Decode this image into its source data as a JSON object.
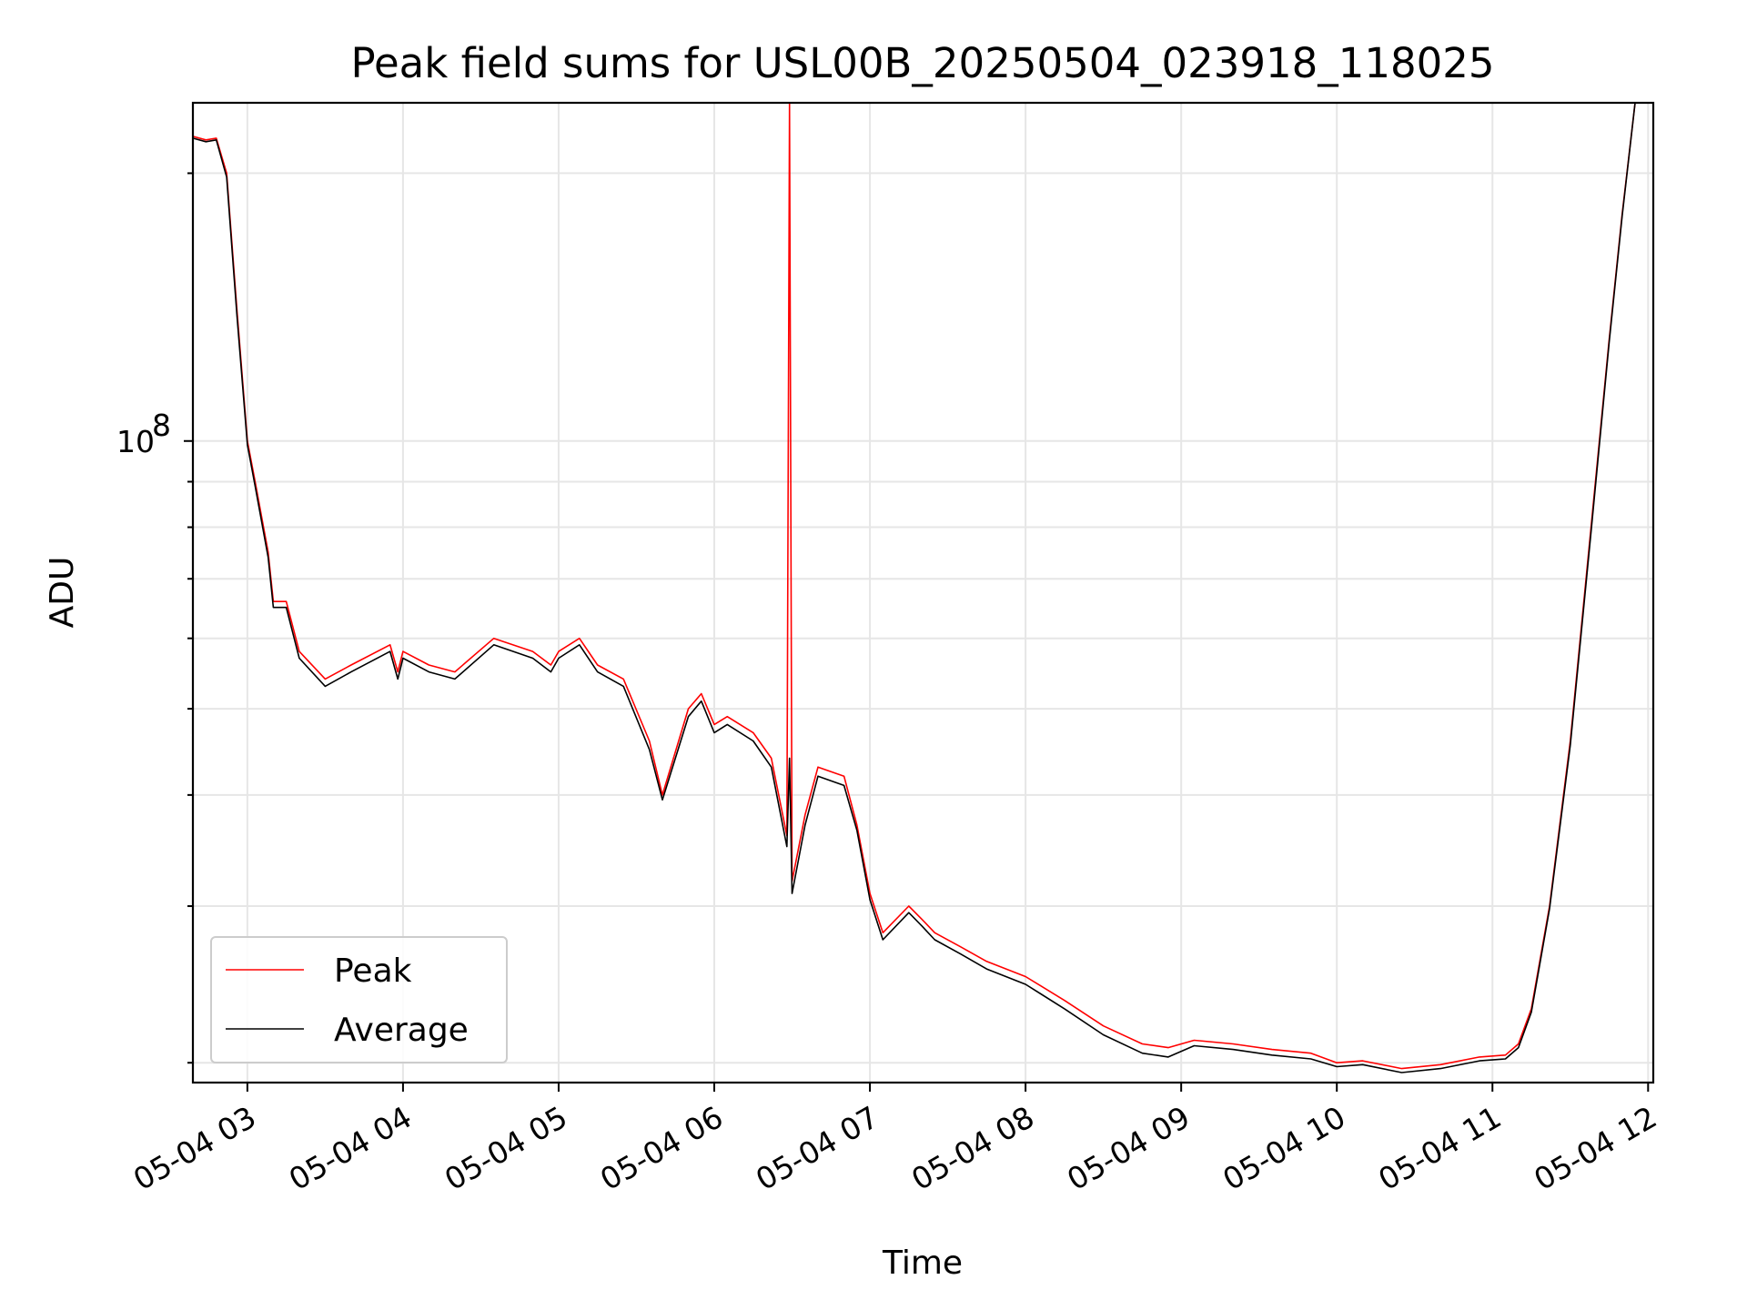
{
  "chart_data": {
    "type": "line",
    "title": "Peak field sums for USL00B_20250504_023918_118025",
    "xlabel": "Time",
    "ylabel": "ADU",
    "xscale": "time",
    "yscale": "log",
    "xlim": [
      "2025-05-04 02:39",
      "2025-05-04 12:02"
    ],
    "ylim": [
      19000000,
      240000000
    ],
    "x_ticks": [
      "05-04 03",
      "05-04 04",
      "05-04 05",
      "05-04 06",
      "05-04 07",
      "05-04 08",
      "05-04 09",
      "05-04 10",
      "05-04 11",
      "05-04 12"
    ],
    "y_major_tick_label": {
      "base": "10",
      "exponent": "8"
    },
    "y_major_tick_value": 100000000,
    "y_minor_ticks": [
      20000000,
      30000000,
      40000000,
      50000000,
      60000000,
      70000000,
      80000000,
      90000000,
      200000000
    ],
    "grid": true,
    "legend_position": "lower-left",
    "series": [
      {
        "name": "Peak",
        "color": "#ff0000",
        "points": [
          [
            "02:39",
            220000000
          ],
          [
            "02:44",
            218000000
          ],
          [
            "02:48",
            219000000
          ],
          [
            "02:52",
            200000000
          ],
          [
            "02:56",
            140000000
          ],
          [
            "03:00",
            100000000
          ],
          [
            "03:03",
            90000000
          ],
          [
            "03:08",
            75000000
          ],
          [
            "03:10",
            66000000
          ],
          [
            "03:15",
            66000000
          ],
          [
            "03:20",
            58000000
          ],
          [
            "03:30",
            54000000
          ],
          [
            "03:40",
            56000000
          ],
          [
            "03:55",
            59000000
          ],
          [
            "03:58",
            55000000
          ],
          [
            "04:00",
            58000000
          ],
          [
            "04:10",
            56000000
          ],
          [
            "04:20",
            55000000
          ],
          [
            "04:35",
            60000000
          ],
          [
            "04:50",
            58000000
          ],
          [
            "04:57",
            56000000
          ],
          [
            "05:00",
            58000000
          ],
          [
            "05:08",
            60000000
          ],
          [
            "05:15",
            56000000
          ],
          [
            "05:25",
            54000000
          ],
          [
            "05:35",
            46000000
          ],
          [
            "05:40",
            40000000
          ],
          [
            "05:50",
            50000000
          ],
          [
            "05:55",
            52000000
          ],
          [
            "06:00",
            48000000
          ],
          [
            "06:05",
            49000000
          ],
          [
            "06:15",
            47000000
          ],
          [
            "06:22",
            44000000
          ],
          [
            "06:28",
            36000000
          ],
          [
            "06:29",
            240000000
          ],
          [
            "06:30",
            32000000
          ],
          [
            "06:35",
            38000000
          ],
          [
            "06:40",
            43000000
          ],
          [
            "06:50",
            42000000
          ],
          [
            "06:55",
            37000000
          ],
          [
            "07:00",
            31000000
          ],
          [
            "07:05",
            28000000
          ],
          [
            "07:15",
            30000000
          ],
          [
            "07:20",
            29000000
          ],
          [
            "07:25",
            28000000
          ],
          [
            "07:35",
            27000000
          ],
          [
            "07:45",
            26000000
          ],
          [
            "08:00",
            25000000
          ],
          [
            "08:15",
            23500000
          ],
          [
            "08:30",
            22000000
          ],
          [
            "08:45",
            21000000
          ],
          [
            "08:55",
            20800000
          ],
          [
            "09:05",
            21200000
          ],
          [
            "09:20",
            21000000
          ],
          [
            "09:35",
            20700000
          ],
          [
            "09:50",
            20500000
          ],
          [
            "10:00",
            20000000
          ],
          [
            "10:10",
            20100000
          ],
          [
            "10:25",
            19700000
          ],
          [
            "10:40",
            19900000
          ],
          [
            "10:55",
            20300000
          ],
          [
            "11:05",
            20400000
          ],
          [
            "11:10",
            21000000
          ],
          [
            "11:15",
            23000000
          ],
          [
            "11:22",
            30000000
          ],
          [
            "11:30",
            46000000
          ],
          [
            "11:38",
            80000000
          ],
          [
            "11:45",
            130000000
          ],
          [
            "11:50",
            180000000
          ],
          [
            "11:55",
            240000000
          ]
        ]
      },
      {
        "name": "Average",
        "color": "#000000",
        "points": [
          [
            "02:39",
            219000000
          ],
          [
            "02:44",
            217000000
          ],
          [
            "02:48",
            218000000
          ],
          [
            "02:52",
            198000000
          ],
          [
            "02:56",
            138000000
          ],
          [
            "03:00",
            99000000
          ],
          [
            "03:03",
            89000000
          ],
          [
            "03:08",
            74000000
          ],
          [
            "03:10",
            65000000
          ],
          [
            "03:15",
            65000000
          ],
          [
            "03:20",
            57000000
          ],
          [
            "03:30",
            53000000
          ],
          [
            "03:40",
            55000000
          ],
          [
            "03:55",
            58000000
          ],
          [
            "03:58",
            54000000
          ],
          [
            "04:00",
            57000000
          ],
          [
            "04:10",
            55000000
          ],
          [
            "04:20",
            54000000
          ],
          [
            "04:35",
            59000000
          ],
          [
            "04:50",
            57000000
          ],
          [
            "04:57",
            55000000
          ],
          [
            "05:00",
            57000000
          ],
          [
            "05:08",
            59000000
          ],
          [
            "05:15",
            55000000
          ],
          [
            "05:25",
            53000000
          ],
          [
            "05:35",
            45000000
          ],
          [
            "05:40",
            39500000
          ],
          [
            "05:50",
            49000000
          ],
          [
            "05:55",
            51000000
          ],
          [
            "06:00",
            47000000
          ],
          [
            "06:05",
            48000000
          ],
          [
            "06:15",
            46000000
          ],
          [
            "06:22",
            43000000
          ],
          [
            "06:28",
            35000000
          ],
          [
            "06:29",
            44000000
          ],
          [
            "06:30",
            31000000
          ],
          [
            "06:35",
            37000000
          ],
          [
            "06:40",
            42000000
          ],
          [
            "06:50",
            41000000
          ],
          [
            "06:55",
            36500000
          ],
          [
            "07:00",
            30500000
          ],
          [
            "07:05",
            27500000
          ],
          [
            "07:15",
            29500000
          ],
          [
            "07:20",
            28500000
          ],
          [
            "07:25",
            27500000
          ],
          [
            "07:35",
            26500000
          ],
          [
            "07:45",
            25500000
          ],
          [
            "08:00",
            24500000
          ],
          [
            "08:15",
            23000000
          ],
          [
            "08:30",
            21500000
          ],
          [
            "08:45",
            20500000
          ],
          [
            "08:55",
            20300000
          ],
          [
            "09:05",
            20900000
          ],
          [
            "09:20",
            20700000
          ],
          [
            "09:35",
            20400000
          ],
          [
            "09:50",
            20200000
          ],
          [
            "10:00",
            19800000
          ],
          [
            "10:10",
            19900000
          ],
          [
            "10:25",
            19500000
          ],
          [
            "10:40",
            19700000
          ],
          [
            "10:55",
            20100000
          ],
          [
            "11:05",
            20200000
          ],
          [
            "11:10",
            20800000
          ],
          [
            "11:15",
            22800000
          ],
          [
            "11:22",
            29800000
          ],
          [
            "11:30",
            45500000
          ],
          [
            "11:38",
            79000000
          ],
          [
            "11:45",
            129000000
          ],
          [
            "11:50",
            179000000
          ],
          [
            "11:55",
            240000000
          ]
        ]
      }
    ]
  }
}
